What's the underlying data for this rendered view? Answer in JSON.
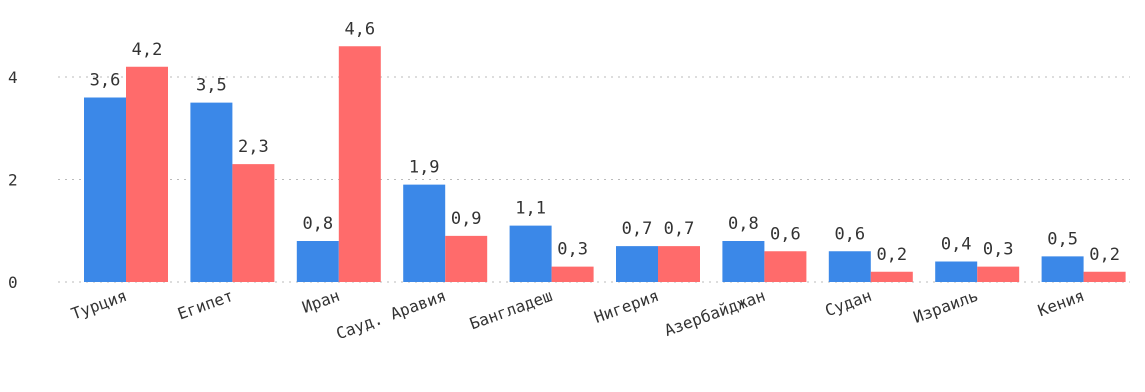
{
  "chart_data": {
    "type": "bar",
    "categories": [
      "Турция",
      "Египет",
      "Иран",
      "Сауд. Аравия",
      "Бангладеш",
      "Нигерия",
      "Азербайджан",
      "Судан",
      "Израиль",
      "Кения"
    ],
    "series": [
      {
        "color": "#3b88e8",
        "values": [
          3.6,
          3.5,
          0.8,
          1.9,
          1.1,
          0.7,
          0.8,
          0.6,
          0.4,
          0.5
        ],
        "labels": [
          "3,6",
          "3,5",
          "0,8",
          "1,9",
          "1,1",
          "0,7",
          "0,8",
          "0,6",
          "0,4",
          "0,5"
        ]
      },
      {
        "color": "#ff6b6b",
        "values": [
          4.2,
          2.3,
          4.6,
          0.9,
          0.3,
          0.7,
          0.6,
          0.2,
          0.3,
          0.2
        ],
        "labels": [
          "4,2",
          "2,3",
          "4,6",
          "0,9",
          "0,3",
          "0,7",
          "0,6",
          "0,2",
          "0,3",
          "0,2"
        ]
      }
    ],
    "yticks": [
      0,
      2,
      4
    ],
    "ytick_labels": [
      "0",
      "2",
      "4"
    ],
    "ylim": [
      0,
      5
    ],
    "grid": true,
    "legend": "none",
    "title": "",
    "xlabel": "",
    "ylabel": ""
  }
}
